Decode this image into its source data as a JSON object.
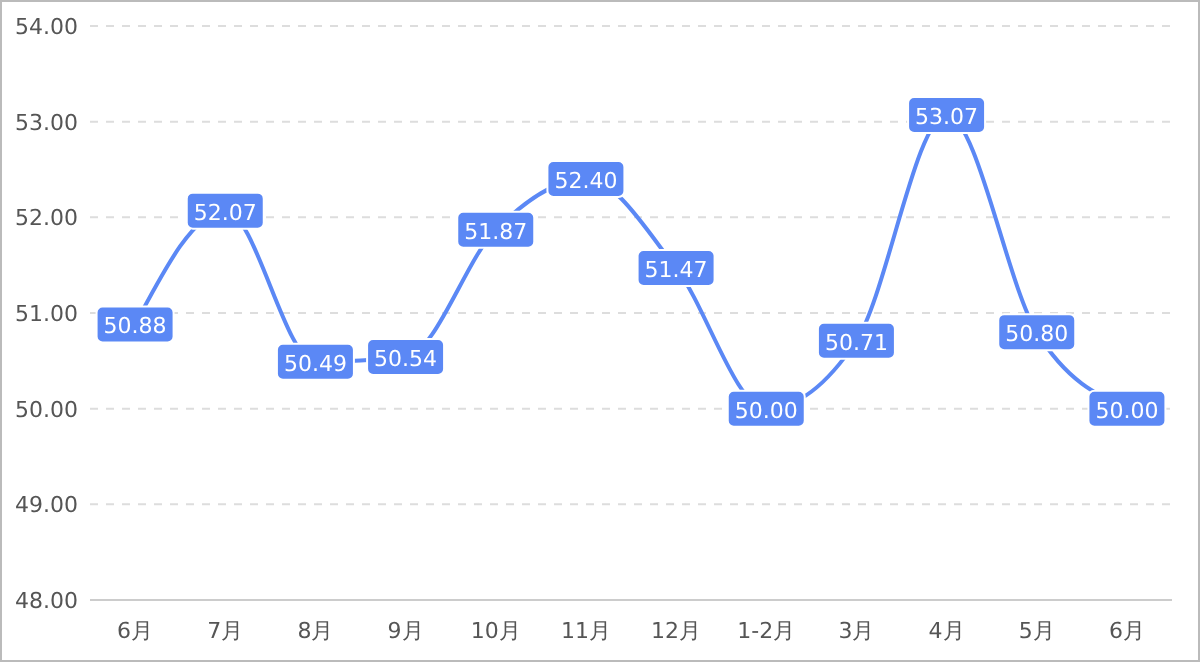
{
  "chart_data": {
    "type": "line",
    "categories": [
      "6月",
      "7月",
      "8月",
      "9月",
      "10月",
      "11月",
      "12月",
      "1-2月",
      "3月",
      "4月",
      "5月",
      "6月"
    ],
    "series": [
      {
        "color": "#5b88f5",
        "values": [
          50.88,
          52.07,
          50.49,
          50.54,
          51.87,
          52.4,
          51.47,
          50.0,
          50.71,
          53.07,
          50.8,
          50.0
        ],
        "value_labels": [
          "50.88",
          "52.07",
          "50.49",
          "50.54",
          "51.87",
          "52.40",
          "51.47",
          "50.00",
          "50.71",
          "53.07",
          "50.80",
          "50.00"
        ]
      }
    ],
    "ylim": [
      48,
      54
    ],
    "yticks": [
      {
        "value": 48,
        "label": "48.00"
      },
      {
        "value": 49,
        "label": "49.00"
      },
      {
        "value": 50,
        "label": "50.00"
      },
      {
        "value": 51,
        "label": "51.00"
      },
      {
        "value": 52,
        "label": "52.00"
      },
      {
        "value": 53,
        "label": "53.00"
      },
      {
        "value": 54,
        "label": "54.00"
      }
    ],
    "grid": "y",
    "line_style": "solid",
    "marker": "square"
  }
}
